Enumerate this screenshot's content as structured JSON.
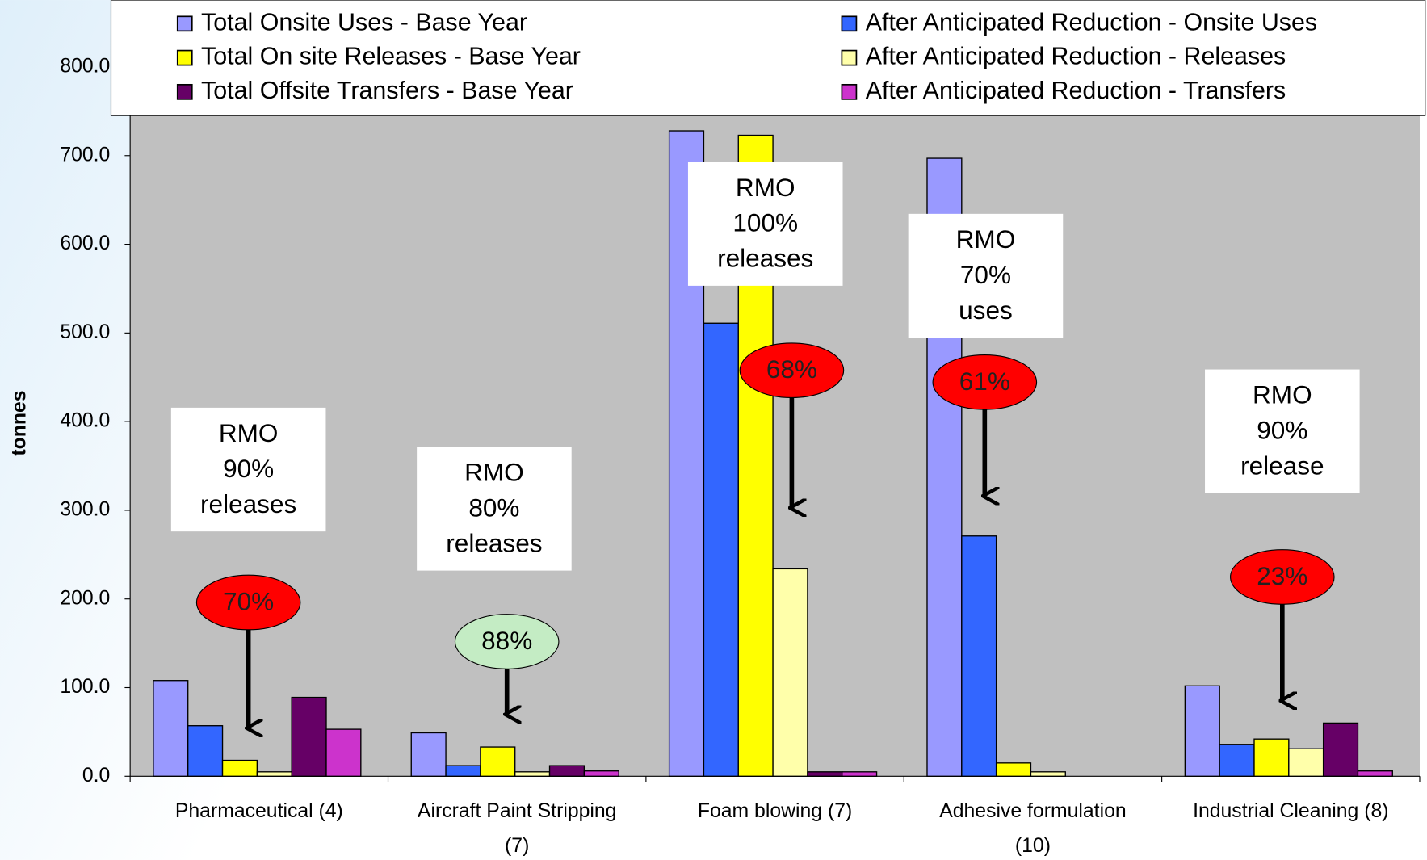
{
  "chart_data": {
    "type": "bar",
    "y_label": "tonnes",
    "categories": [
      "Pharmaceutical (4)",
      "Aircraft Paint Stripping (7)",
      "Foam blowing (7)",
      "Adhesive formulation (10)",
      "Industrial Cleaning (8)"
    ],
    "series": [
      {
        "name": "Total Onsite Uses - Base Year",
        "color": "#9999ff",
        "values": [
          108,
          49,
          728,
          697,
          102
        ]
      },
      {
        "name": "After Anticipated Reduction - Onsite Uses",
        "color": "#3366ff",
        "values": [
          57,
          12,
          511,
          271,
          36
        ]
      },
      {
        "name": "Total On site Releases - Base Year",
        "color": "#ffff00",
        "values": [
          18,
          33,
          723,
          15,
          42
        ]
      },
      {
        "name": "After Anticipated Reduction - Releases",
        "color": "#ffffaa",
        "values": [
          5,
          5,
          234,
          5,
          31
        ]
      },
      {
        "name": "Total Offsite Transfers - Base Year",
        "color": "#660066",
        "values": [
          89,
          12,
          5,
          0,
          60
        ]
      },
      {
        "name": "After Anticipated Reduction - Transfers",
        "color": "#cc33cc",
        "values": [
          53,
          6,
          5,
          0,
          6
        ]
      }
    ],
    "ylim": [
      0,
      800
    ],
    "yticks": [
      {
        "value": 0,
        "label": "0.0"
      },
      {
        "value": 100,
        "label": "100.0"
      },
      {
        "value": 200,
        "label": "200.0"
      },
      {
        "value": 300,
        "label": "300.0"
      },
      {
        "value": 400,
        "label": "400.0"
      },
      {
        "value": 500,
        "label": "500.0"
      },
      {
        "value": 600,
        "label": "600.0"
      },
      {
        "value": 700,
        "label": "700.0"
      },
      {
        "value": 800,
        "label": "800.0"
      }
    ],
    "annotations": [
      {
        "lines": [
          "RMO",
          "90%",
          "releases"
        ],
        "badge": "70%",
        "badge_color": "#ff0000"
      },
      {
        "lines": [
          "RMO",
          "80%",
          "releases"
        ],
        "badge": "88%",
        "badge_color": "#c4ecc4"
      },
      {
        "lines": [
          "RMO",
          "100%",
          "releases"
        ],
        "badge": "68%",
        "badge_color": "#ff0000"
      },
      {
        "lines": [
          "RMO",
          "70%",
          "uses"
        ],
        "badge": "61%",
        "badge_color": "#ff0000"
      },
      {
        "lines": [
          "RMO",
          "90%",
          "release"
        ],
        "badge": "23%",
        "badge_color": "#ff0000"
      }
    ]
  }
}
